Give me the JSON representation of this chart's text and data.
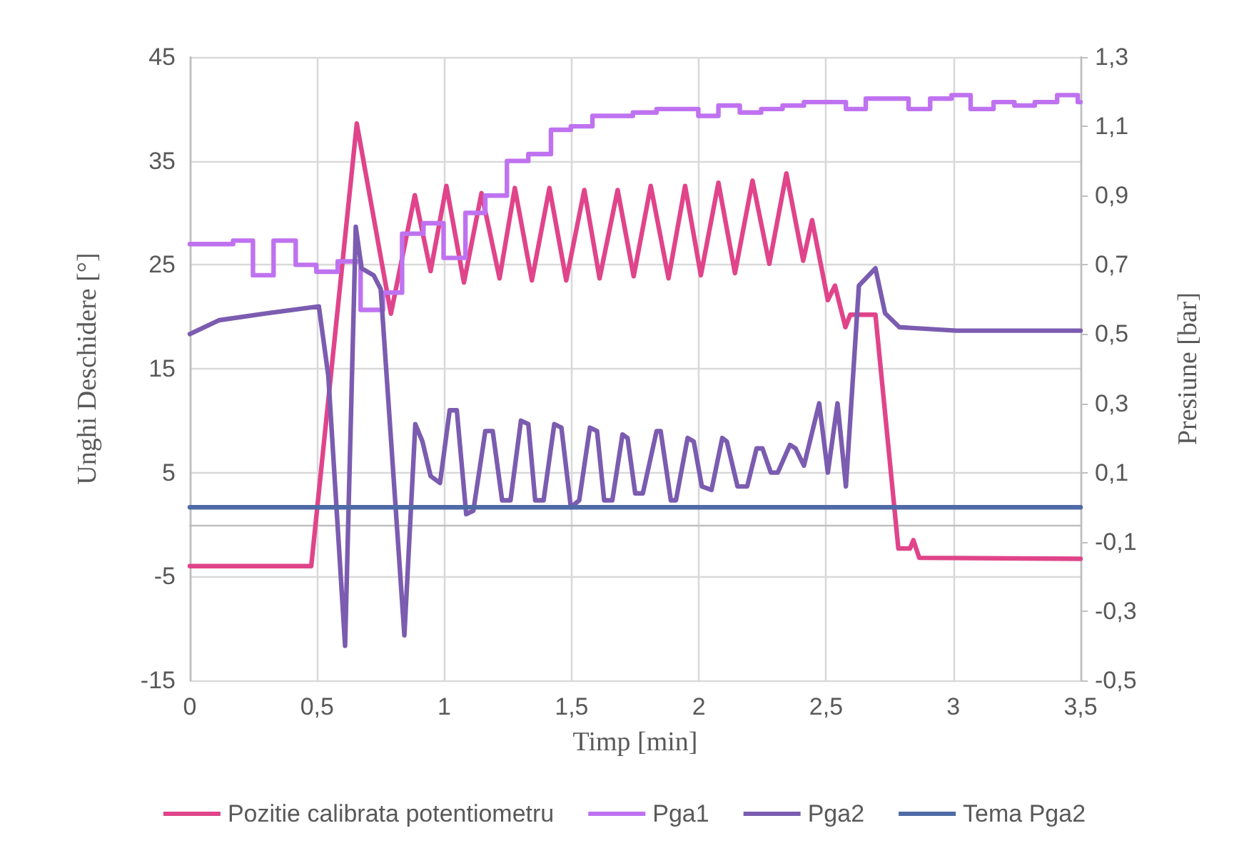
{
  "chart_data": {
    "type": "line",
    "xlabel": "Timp [min]",
    "ylabel": "Unghi Deschidere [°]",
    "y2label": "Presiune [bar]",
    "xlim": [
      0,
      3.5
    ],
    "xticks": [
      0,
      {
        "value": 0.5,
        "label": "0,5"
      },
      1,
      {
        "value": 1.5,
        "label": "1,5"
      },
      2,
      {
        "value": 2.5,
        "label": "2,5"
      },
      3,
      {
        "value": 3.5,
        "label": "3,5"
      }
    ],
    "ylim": [
      -15,
      45
    ],
    "yticks": [
      -15,
      -5,
      5,
      15,
      25,
      35,
      45
    ],
    "y2lim": [
      -0.5,
      1.3
    ],
    "y2ticks": [
      {
        "value": -0.5,
        "label": "-0,5"
      },
      {
        "value": -0.3,
        "label": "-0,3"
      },
      {
        "value": -0.1,
        "label": "-0,1"
      },
      {
        "value": 0.1,
        "label": "0,1"
      },
      {
        "value": 0.3,
        "label": "0,3"
      },
      {
        "value": 0.5,
        "label": "0,5"
      },
      {
        "value": 0.7,
        "label": "0,7"
      },
      {
        "value": 0.9,
        "label": "0,9"
      },
      {
        "value": 1.1,
        "label": "1,1"
      },
      {
        "value": 1.3,
        "label": "1,3"
      }
    ],
    "grid": true,
    "legend": "bottom",
    "marker": "none",
    "line_style": "solid",
    "series": [
      {
        "name": "Pozitie calibrata potentiometru",
        "color": "#e0448a",
        "x": [
          0,
          0.477,
          0.656,
          0.79,
          0.884,
          0.946,
          1.008,
          1.077,
          1.146,
          1.217,
          1.277,
          1.344,
          1.413,
          1.479,
          1.55,
          1.61,
          1.681,
          1.744,
          1.811,
          1.881,
          1.946,
          2.008,
          2.077,
          2.142,
          2.211,
          2.277,
          2.344,
          2.41,
          2.445,
          2.507,
          2.535,
          2.576,
          2.595,
          2.694,
          2.784,
          2.83,
          2.843,
          2.866,
          3.5
        ],
        "values": [
          -4.0,
          -4.0,
          38.6,
          20.3,
          31.7,
          24.4,
          32.6,
          23.3,
          31.9,
          23.7,
          32.4,
          23.5,
          32.4,
          23.5,
          32.2,
          23.7,
          32.2,
          23.9,
          32.6,
          23.7,
          32.6,
          24.0,
          32.9,
          24.2,
          33.1,
          25.1,
          33.8,
          25.4,
          29.3,
          21.6,
          23.0,
          19.0,
          20.2,
          20.2,
          -2.3,
          -2.3,
          -1.5,
          -3.2,
          -3.3
        ]
      },
      {
        "name": "Pga1",
        "type": "step",
        "axis": "y2",
        "color": "#bf72f0",
        "x": [
          0,
          0.17,
          0.248,
          0.329,
          0.416,
          0.497,
          0.581,
          0.671,
          0.759,
          0.834,
          0.918,
          0.997,
          1.083,
          1.161,
          1.246,
          1.33,
          1.419,
          1.497,
          1.582,
          1.741,
          1.834,
          1.998,
          2.077,
          2.161,
          2.245,
          2.329,
          2.413,
          2.578,
          2.656,
          2.824,
          2.909,
          2.993,
          3.068,
          3.158,
          3.24,
          3.32,
          3.408,
          3.489,
          3.5
        ],
        "values": [
          0.76,
          0.77,
          0.67,
          0.77,
          0.7,
          0.68,
          0.71,
          0.57,
          0.62,
          0.79,
          0.82,
          0.72,
          0.85,
          0.9,
          1.0,
          1.02,
          1.09,
          1.1,
          1.13,
          1.14,
          1.15,
          1.13,
          1.16,
          1.14,
          1.15,
          1.16,
          1.17,
          1.15,
          1.18,
          1.15,
          1.18,
          1.19,
          1.15,
          1.17,
          1.16,
          1.17,
          1.19,
          1.17,
          1.17
        ]
      },
      {
        "name": "Pga2",
        "axis": "y2",
        "color": "#7b5cb0",
        "x": [
          0,
          0.114,
          0.301,
          0.507,
          0.544,
          0.61,
          0.652,
          0.675,
          0.722,
          0.75,
          0.843,
          0.886,
          0.914,
          0.946,
          0.983,
          1.021,
          1.049,
          1.086,
          1.114,
          1.161,
          1.19,
          1.227,
          1.26,
          1.301,
          1.33,
          1.357,
          1.39,
          1.432,
          1.46,
          1.497,
          1.53,
          1.572,
          1.6,
          1.628,
          1.66,
          1.7,
          1.72,
          1.75,
          1.78,
          1.834,
          1.85,
          1.89,
          1.91,
          1.956,
          1.98,
          2.012,
          2.05,
          2.092,
          2.11,
          2.152,
          2.19,
          2.227,
          2.25,
          2.283,
          2.31,
          2.358,
          2.38,
          2.413,
          2.473,
          2.507,
          2.545,
          2.578,
          2.629,
          2.694,
          2.732,
          2.788,
          3.012,
          3.292,
          3.5
        ],
        "values": [
          0.5,
          0.54,
          0.56,
          0.58,
          0.38,
          -0.4,
          0.81,
          0.69,
          0.67,
          0.63,
          -0.37,
          0.24,
          0.19,
          0.09,
          0.07,
          0.28,
          0.28,
          -0.02,
          -0.01,
          0.22,
          0.22,
          0.02,
          0.02,
          0.25,
          0.24,
          0.02,
          0.02,
          0.24,
          0.23,
          0.0,
          0.02,
          0.23,
          0.22,
          0.02,
          0.02,
          0.21,
          0.2,
          0.04,
          0.04,
          0.22,
          0.22,
          0.02,
          0.02,
          0.2,
          0.19,
          0.06,
          0.05,
          0.2,
          0.19,
          0.06,
          0.06,
          0.17,
          0.17,
          0.1,
          0.1,
          0.18,
          0.17,
          0.12,
          0.3,
          0.1,
          0.3,
          0.06,
          0.64,
          0.69,
          0.56,
          0.52,
          0.51,
          0.51,
          0.51
        ]
      },
      {
        "name": "Tema Pga2",
        "axis": "y2",
        "color": "#4f6aa6",
        "x": [
          0,
          3.5
        ],
        "values": [
          0,
          0
        ]
      }
    ]
  }
}
